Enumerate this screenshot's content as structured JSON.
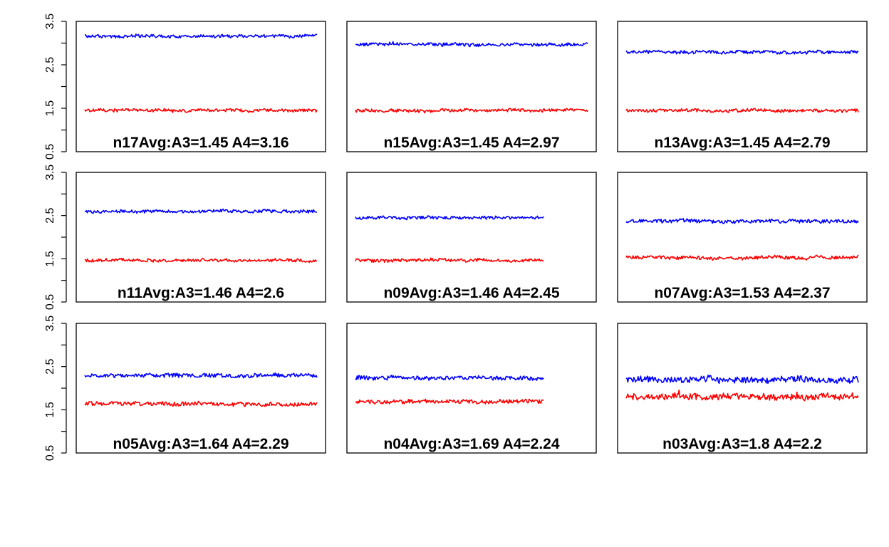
{
  "colors": {
    "A3": "#ff0000",
    "A4": "#0000ff",
    "frame": "#000000"
  },
  "chart_data": {
    "type": "line",
    "layout": "3x3 small multiples",
    "ylim": [
      0.5,
      3.5
    ],
    "yticks": [
      "0.5",
      "1.5",
      "2.5",
      "3.5"
    ],
    "grid": false,
    "panels": [
      {
        "label": "n17Avg:A3=1.45 A4=3.16",
        "A3_mean": 1.45,
        "A4_mean": 3.16,
        "length_frac": 1.0,
        "noise": 0.035
      },
      {
        "label": "n15Avg:A3=1.45 A4=2.97",
        "A3_mean": 1.45,
        "A4_mean": 2.97,
        "length_frac": 1.0,
        "noise": 0.035
      },
      {
        "label": "n13Avg:A3=1.45 A4=2.79",
        "A3_mean": 1.45,
        "A4_mean": 2.79,
        "length_frac": 1.0,
        "noise": 0.035
      },
      {
        "label": "n11Avg:A3=1.46 A4=2.6",
        "A3_mean": 1.46,
        "A4_mean": 2.6,
        "length_frac": 1.0,
        "noise": 0.035
      },
      {
        "label": "n09Avg:A3=1.46 A4=2.45",
        "A3_mean": 1.46,
        "A4_mean": 2.45,
        "length_frac": 0.81,
        "noise": 0.035
      },
      {
        "label": "n07Avg:A3=1.53 A4=2.37",
        "A3_mean": 1.53,
        "A4_mean": 2.37,
        "length_frac": 1.0,
        "noise": 0.04
      },
      {
        "label": "n05Avg:A3=1.64 A4=2.29",
        "A3_mean": 1.64,
        "A4_mean": 2.29,
        "length_frac": 1.0,
        "noise": 0.045
      },
      {
        "label": "n04Avg:A3=1.69 A4=2.24",
        "A3_mean": 1.69,
        "A4_mean": 2.24,
        "length_frac": 0.81,
        "noise": 0.045
      },
      {
        "label": "n03Avg:A3=1.8 A4=2.2",
        "A3_mean": 1.8,
        "A4_mean": 2.2,
        "length_frac": 1.0,
        "noise": 0.07
      }
    ]
  }
}
